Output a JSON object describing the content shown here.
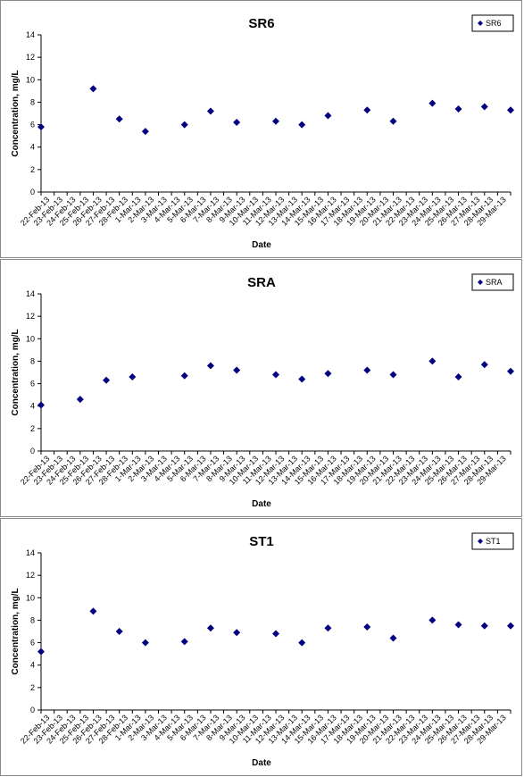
{
  "chart_data": [
    {
      "type": "scatter",
      "title": "SR6",
      "xlabel": "Date",
      "ylabel": "Concentration, mg/L",
      "ylim": [
        0,
        14
      ],
      "yticks": [
        "0",
        "2",
        "4",
        "6",
        "8",
        "10",
        "12",
        "14"
      ],
      "legend": "top-right",
      "grid": false,
      "categories": [
        "22-Feb-13",
        "23-Feb-13",
        "24-Feb-13",
        "25-Feb-13",
        "26-Feb-13",
        "27-Feb-13",
        "28-Feb-13",
        "1-Mar-13",
        "2-Mar-13",
        "3-Mar-13",
        "4-Mar-13",
        "5-Mar-13",
        "6-Mar-13",
        "7-Mar-13",
        "8-Mar-13",
        "9-Mar-13",
        "10-Mar-13",
        "11-Mar-13",
        "12-Mar-13",
        "13-Mar-13",
        "14-Mar-13",
        "15-Mar-13",
        "16-Mar-13",
        "17-Mar-13",
        "18-Mar-13",
        "19-Mar-13",
        "20-Mar-13",
        "21-Mar-13",
        "22-Mar-13",
        "23-Mar-13",
        "24-Mar-13",
        "25-Mar-13",
        "26-Mar-13",
        "27-Mar-13",
        "28-Mar-13",
        "29-Mar-13"
      ],
      "series": [
        {
          "name": "SR6",
          "color": "#000080",
          "marker": "diamond",
          "points": [
            {
              "x": "22-Feb-13",
              "y": 5.8
            },
            {
              "x": "26-Feb-13",
              "y": 9.2
            },
            {
              "x": "28-Feb-13",
              "y": 6.5
            },
            {
              "x": "2-Mar-13",
              "y": 5.4
            },
            {
              "x": "5-Mar-13",
              "y": 6.0
            },
            {
              "x": "7-Mar-13",
              "y": 7.2
            },
            {
              "x": "9-Mar-13",
              "y": 6.2
            },
            {
              "x": "12-Mar-13",
              "y": 6.3
            },
            {
              "x": "14-Mar-13",
              "y": 6.0
            },
            {
              "x": "16-Mar-13",
              "y": 6.8
            },
            {
              "x": "19-Mar-13",
              "y": 7.3
            },
            {
              "x": "21-Mar-13",
              "y": 6.3
            },
            {
              "x": "24-Mar-13",
              "y": 7.9
            },
            {
              "x": "26-Mar-13",
              "y": 7.4
            },
            {
              "x": "28-Mar-13",
              "y": 7.6
            },
            {
              "x": "30-Mar-13",
              "y": 7.3
            }
          ]
        }
      ]
    },
    {
      "type": "scatter",
      "title": "SRA",
      "xlabel": "Date",
      "ylabel": "Concentration, mg/L",
      "ylim": [
        0,
        14
      ],
      "yticks": [
        "0",
        "2",
        "4",
        "6",
        "8",
        "10",
        "12",
        "14"
      ],
      "legend": "top-right",
      "grid": false,
      "categories": [
        "22-Feb-13",
        "23-Feb-13",
        "24-Feb-13",
        "25-Feb-13",
        "26-Feb-13",
        "27-Feb-13",
        "28-Feb-13",
        "1-Mar-13",
        "2-Mar-13",
        "3-Mar-13",
        "4-Mar-13",
        "5-Mar-13",
        "6-Mar-13",
        "7-Mar-13",
        "8-Mar-13",
        "9-Mar-13",
        "10-Mar-13",
        "11-Mar-13",
        "12-Mar-13",
        "13-Mar-13",
        "14-Mar-13",
        "15-Mar-13",
        "16-Mar-13",
        "17-Mar-13",
        "18-Mar-13",
        "19-Mar-13",
        "20-Mar-13",
        "21-Mar-13",
        "22-Mar-13",
        "23-Mar-13",
        "24-Mar-13",
        "25-Mar-13",
        "26-Mar-13",
        "27-Mar-13",
        "28-Mar-13",
        "29-Mar-13"
      ],
      "series": [
        {
          "name": "SRA",
          "color": "#000080",
          "marker": "diamond",
          "points": [
            {
              "x": "22-Feb-13",
              "y": 4.1
            },
            {
              "x": "25-Feb-13",
              "y": 4.6
            },
            {
              "x": "27-Feb-13",
              "y": 6.3
            },
            {
              "x": "1-Mar-13",
              "y": 6.6
            },
            {
              "x": "5-Mar-13",
              "y": 6.7
            },
            {
              "x": "7-Mar-13",
              "y": 7.6
            },
            {
              "x": "9-Mar-13",
              "y": 7.2
            },
            {
              "x": "12-Mar-13",
              "y": 6.8
            },
            {
              "x": "14-Mar-13",
              "y": 6.4
            },
            {
              "x": "16-Mar-13",
              "y": 6.9
            },
            {
              "x": "19-Mar-13",
              "y": 7.2
            },
            {
              "x": "21-Mar-13",
              "y": 6.8
            },
            {
              "x": "24-Mar-13",
              "y": 8.0
            },
            {
              "x": "26-Mar-13",
              "y": 6.6
            },
            {
              "x": "28-Mar-13",
              "y": 7.7
            },
            {
              "x": "30-Mar-13",
              "y": 7.1
            }
          ]
        }
      ]
    },
    {
      "type": "scatter",
      "title": "ST1",
      "xlabel": "Date",
      "ylabel": "Concentration, mg/L",
      "ylim": [
        0,
        14
      ],
      "yticks": [
        "0",
        "2",
        "4",
        "6",
        "8",
        "10",
        "12",
        "14"
      ],
      "legend": "top-right",
      "grid": false,
      "categories": [
        "22-Feb-13",
        "23-Feb-13",
        "24-Feb-13",
        "25-Feb-13",
        "26-Feb-13",
        "27-Feb-13",
        "28-Feb-13",
        "1-Mar-13",
        "2-Mar-13",
        "3-Mar-13",
        "4-Mar-13",
        "5-Mar-13",
        "6-Mar-13",
        "7-Mar-13",
        "8-Mar-13",
        "9-Mar-13",
        "10-Mar-13",
        "11-Mar-13",
        "12-Mar-13",
        "13-Mar-13",
        "14-Mar-13",
        "15-Mar-13",
        "16-Mar-13",
        "17-Mar-13",
        "18-Mar-13",
        "19-Mar-13",
        "20-Mar-13",
        "21-Mar-13",
        "22-Mar-13",
        "23-Mar-13",
        "24-Mar-13",
        "25-Mar-13",
        "26-Mar-13",
        "27-Mar-13",
        "28-Mar-13",
        "29-Mar-13"
      ],
      "series": [
        {
          "name": "ST1",
          "color": "#000080",
          "marker": "diamond",
          "points": [
            {
              "x": "22-Feb-13",
              "y": 5.2
            },
            {
              "x": "26-Feb-13",
              "y": 8.8
            },
            {
              "x": "28-Feb-13",
              "y": 7.0
            },
            {
              "x": "2-Mar-13",
              "y": 6.0
            },
            {
              "x": "5-Mar-13",
              "y": 6.1
            },
            {
              "x": "7-Mar-13",
              "y": 7.3
            },
            {
              "x": "9-Mar-13",
              "y": 6.9
            },
            {
              "x": "12-Mar-13",
              "y": 6.8
            },
            {
              "x": "14-Mar-13",
              "y": 6.0
            },
            {
              "x": "16-Mar-13",
              "y": 7.3
            },
            {
              "x": "19-Mar-13",
              "y": 7.4
            },
            {
              "x": "21-Mar-13",
              "y": 6.4
            },
            {
              "x": "24-Mar-13",
              "y": 8.0
            },
            {
              "x": "26-Mar-13",
              "y": 7.6
            },
            {
              "x": "28-Mar-13",
              "y": 7.5
            },
            {
              "x": "30-Mar-13",
              "y": 7.5
            }
          ]
        }
      ]
    }
  ]
}
